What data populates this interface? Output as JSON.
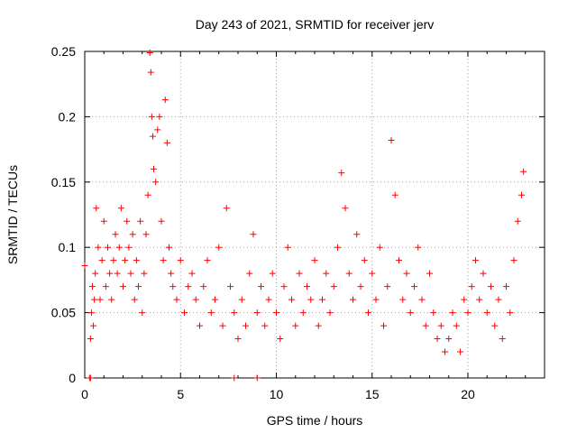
{
  "chart_data": {
    "type": "scatter",
    "title": "Day 243 of 2021, SRMTID for receiver jerv",
    "xlabel": "GPS time / hours",
    "ylabel": "SRMTID / TECUs",
    "xlim": [
      0,
      24
    ],
    "ylim": [
      0,
      0.25
    ],
    "x_ticks": [
      0,
      5,
      10,
      15,
      20
    ],
    "x_tick_labels": [
      "0",
      "5",
      "10",
      "15",
      "20"
    ],
    "y_ticks": [
      0,
      0.05,
      0.1,
      0.15,
      0.2,
      0.25
    ],
    "y_tick_labels": [
      "0",
      "0.05",
      "0.1",
      "0.15",
      "0.2",
      "0.25"
    ],
    "grid": true,
    "marker": "plus",
    "series": [
      {
        "name": "SRMTID",
        "color": "#ff0000",
        "x": [
          0.3,
          0.35,
          0.4,
          0.45,
          0.5,
          0.55,
          0.6,
          0.7,
          0.8,
          0.9,
          1.0,
          1.1,
          1.2,
          1.3,
          1.4,
          1.5,
          1.6,
          1.7,
          1.8,
          1.9,
          2.0,
          2.1,
          2.2,
          2.3,
          2.4,
          2.5,
          2.6,
          2.7,
          2.8,
          2.9,
          3.0,
          3.1,
          3.2,
          3.3,
          3.4,
          3.45,
          3.5,
          3.55,
          3.6,
          3.7,
          3.8,
          3.9,
          4.0,
          4.1,
          4.2,
          4.3,
          4.4,
          4.5,
          4.6,
          4.8,
          5.0,
          5.2,
          5.4,
          5.6,
          5.8,
          6.0,
          6.2,
          6.4,
          6.6,
          6.8,
          7.0,
          7.2,
          7.4,
          7.6,
          7.8,
          8.0,
          8.2,
          8.4,
          8.6,
          8.8,
          9.0,
          9.2,
          9.4,
          9.6,
          9.8,
          10.0,
          10.2,
          10.4,
          10.6,
          10.8,
          11.0,
          11.2,
          11.4,
          11.6,
          11.8,
          12.0,
          12.2,
          12.4,
          12.6,
          12.8,
          13.0,
          13.2,
          13.4,
          13.6,
          13.8,
          14.0,
          14.2,
          14.4,
          14.6,
          14.8,
          15.0,
          15.2,
          15.4,
          15.6,
          15.8,
          16.0,
          16.2,
          16.4,
          16.6,
          16.8,
          17.0,
          17.2,
          17.4,
          17.6,
          17.8,
          18.0,
          18.2,
          18.4,
          18.6,
          18.8,
          19.0,
          19.2,
          19.4,
          19.6,
          19.8,
          20.0,
          20.2,
          20.4,
          20.6,
          20.8,
          21.0,
          21.2,
          21.4,
          21.6,
          21.8,
          22.0,
          22.2,
          22.4,
          22.6,
          22.8,
          22.9,
          0.25,
          0.3,
          7.8,
          9.0,
          0.0
        ],
        "y": [
          0.03,
          0.05,
          0.07,
          0.04,
          0.06,
          0.08,
          0.13,
          0.1,
          0.06,
          0.09,
          0.12,
          0.07,
          0.1,
          0.08,
          0.06,
          0.09,
          0.11,
          0.08,
          0.1,
          0.13,
          0.07,
          0.09,
          0.12,
          0.1,
          0.08,
          0.11,
          0.06,
          0.09,
          0.07,
          0.12,
          0.05,
          0.08,
          0.11,
          0.14,
          0.249,
          0.234,
          0.2,
          0.185,
          0.16,
          0.15,
          0.19,
          0.2,
          0.12,
          0.09,
          0.213,
          0.18,
          0.1,
          0.08,
          0.07,
          0.06,
          0.09,
          0.05,
          0.07,
          0.08,
          0.06,
          0.04,
          0.07,
          0.09,
          0.05,
          0.06,
          0.1,
          0.04,
          0.13,
          0.07,
          0.05,
          0.03,
          0.06,
          0.04,
          0.08,
          0.11,
          0.05,
          0.07,
          0.04,
          0.06,
          0.08,
          0.05,
          0.03,
          0.07,
          0.1,
          0.06,
          0.04,
          0.08,
          0.05,
          0.07,
          0.06,
          0.09,
          0.04,
          0.06,
          0.08,
          0.05,
          0.07,
          0.1,
          0.157,
          0.13,
          0.08,
          0.06,
          0.11,
          0.07,
          0.09,
          0.05,
          0.08,
          0.06,
          0.1,
          0.04,
          0.07,
          0.182,
          0.14,
          0.09,
          0.06,
          0.08,
          0.05,
          0.07,
          0.1,
          0.06,
          0.04,
          0.08,
          0.05,
          0.03,
          0.04,
          0.02,
          0.03,
          0.05,
          0.04,
          0.02,
          0.06,
          0.05,
          0.07,
          0.09,
          0.06,
          0.08,
          0.05,
          0.07,
          0.04,
          0.06,
          0.03,
          0.07,
          0.05,
          0.09,
          0.12,
          0.14,
          0.158,
          0.0,
          0.0,
          0.0,
          0.0,
          0.086
        ]
      }
    ]
  }
}
